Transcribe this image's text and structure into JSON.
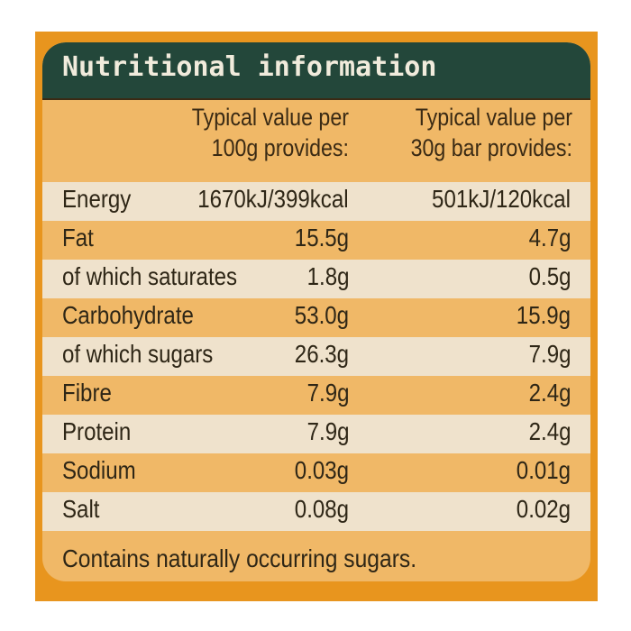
{
  "label": {
    "title": "Nutritional information",
    "columns": [
      {
        "line1": "Typical value per",
        "line2": "100g provides:"
      },
      {
        "line1": "Typical value per",
        "line2": "30g bar provides:"
      }
    ],
    "rows": [
      {
        "name": "Energy",
        "per_100g": "1670kJ/399kcal",
        "per_bar": "501kJ/120kcal"
      },
      {
        "name": "Fat",
        "per_100g": "15.5g",
        "per_bar": "4.7g"
      },
      {
        "name": "of which saturates",
        "per_100g": "1.8g",
        "per_bar": "0.5g"
      },
      {
        "name": "Carbohydrate",
        "per_100g": "53.0g",
        "per_bar": "15.9g"
      },
      {
        "name": "of which sugars",
        "per_100g": "26.3g",
        "per_bar": "7.9g"
      },
      {
        "name": "Fibre",
        "per_100g": "7.9g",
        "per_bar": "2.4g"
      },
      {
        "name": "Protein",
        "per_100g": "7.9g",
        "per_bar": "2.4g"
      },
      {
        "name": "Sodium",
        "per_100g": "0.03g",
        "per_bar": "0.01g"
      },
      {
        "name": "Salt",
        "per_100g": "0.08g",
        "per_bar": "0.02g"
      }
    ],
    "footer": "Contains naturally occurring sugars."
  },
  "colors": {
    "frame": "#e8951e",
    "panel": "#f0b867",
    "header": "#23473a",
    "header_text": "#f1ebdc",
    "light_row": "#efe2cc",
    "text": "#2e2616"
  }
}
